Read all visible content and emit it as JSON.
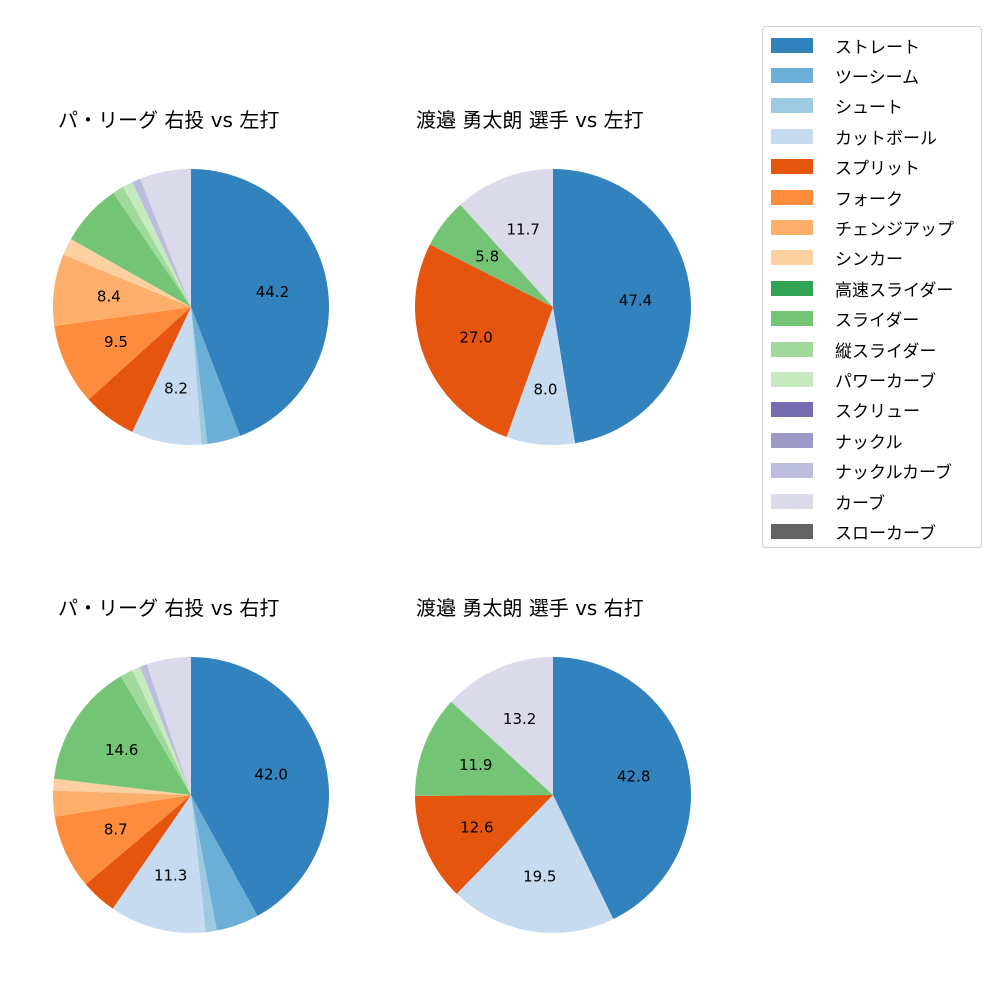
{
  "legend": {
    "items": [
      {
        "label": "ストレート",
        "color": "#3182bd"
      },
      {
        "label": "ツーシーム",
        "color": "#6baed6"
      },
      {
        "label": "シュート",
        "color": "#9ecae1"
      },
      {
        "label": "カットボール",
        "color": "#c6dbef"
      },
      {
        "label": "スプリット",
        "color": "#e6550d"
      },
      {
        "label": "フォーク",
        "color": "#fd8d3c"
      },
      {
        "label": "チェンジアップ",
        "color": "#fdae6b"
      },
      {
        "label": "シンカー",
        "color": "#fdd0a2"
      },
      {
        "label": "高速スライダー",
        "color": "#31a354"
      },
      {
        "label": "スライダー",
        "color": "#74c476"
      },
      {
        "label": "縦スライダー",
        "color": "#a1d99b"
      },
      {
        "label": "パワーカーブ",
        "color": "#c7e9c0"
      },
      {
        "label": "スクリュー",
        "color": "#756bb1"
      },
      {
        "label": "ナックル",
        "color": "#9e9ac8"
      },
      {
        "label": "ナックルカーブ",
        "color": "#bcbddc"
      },
      {
        "label": "カーブ",
        "color": "#dadaeb"
      },
      {
        "label": "スローカーブ",
        "color": "#636363"
      }
    ]
  },
  "chart_data": [
    {
      "type": "pie",
      "title": "パ・リーグ 右投 vs 左打",
      "labels": [
        "ストレート",
        "ツーシーム",
        "シュート",
        "カットボール",
        "スプリット",
        "フォーク",
        "チェンジアップ",
        "シンカー",
        "スライダー",
        "縦スライダー",
        "パワーカーブ",
        "ナックルカーブ",
        "カーブ"
      ],
      "values": [
        44.2,
        3.9,
        0.7,
        8.2,
        6.3,
        9.5,
        8.4,
        2.0,
        7.3,
        1.3,
        1.2,
        1.0,
        6.0
      ],
      "shown_labels": [
        "44.2",
        "",
        "",
        "8.2",
        "",
        "9.5",
        "8.4",
        "",
        "",
        "",
        "",
        "",
        ""
      ]
    },
    {
      "type": "pie",
      "title": "渡邉 勇太朗 選手 vs 左打",
      "labels": [
        "ストレート",
        "カットボール",
        "スプリット",
        "スライダー",
        "カーブ"
      ],
      "values": [
        47.4,
        8.0,
        27.0,
        5.8,
        11.7
      ],
      "shown_labels": [
        "47.4",
        "8.0",
        "27.0",
        "5.8",
        "11.7"
      ]
    },
    {
      "type": "pie",
      "title": "パ・リーグ 右投 vs 右打",
      "labels": [
        "ストレート",
        "ツーシーム",
        "シュート",
        "カットボール",
        "スプリット",
        "フォーク",
        "チェンジアップ",
        "シンカー",
        "スライダー",
        "縦スライダー",
        "パワーカーブ",
        "ナックルカーブ",
        "カーブ"
      ],
      "values": [
        42.0,
        5.0,
        1.3,
        11.3,
        4.2,
        8.7,
        3.0,
        1.4,
        14.6,
        1.5,
        1.0,
        0.8,
        5.2
      ],
      "shown_labels": [
        "42.0",
        "",
        "",
        "11.3",
        "",
        "8.7",
        "",
        "",
        "14.6",
        "",
        "",
        "",
        ""
      ]
    },
    {
      "type": "pie",
      "title": "渡邉 勇太朗 選手 vs 右打",
      "labels": [
        "ストレート",
        "カットボール",
        "スプリット",
        "スライダー",
        "カーブ"
      ],
      "values": [
        42.8,
        19.5,
        12.6,
        11.9,
        13.2
      ],
      "shown_labels": [
        "42.8",
        "19.5",
        "12.6",
        "11.9",
        "13.2"
      ]
    }
  ]
}
